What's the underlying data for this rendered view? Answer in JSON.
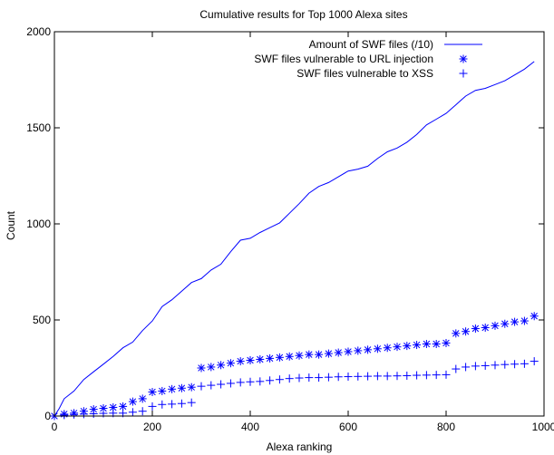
{
  "chart_data": {
    "type": "line",
    "title": "Cumulative results for Top 1000 Alexa sites",
    "xlabel": "Alexa ranking",
    "ylabel": "Count",
    "xlim": [
      0,
      1000
    ],
    "ylim": [
      0,
      2000
    ],
    "xticks": [
      "0",
      "200",
      "400",
      "600",
      "800",
      "1000"
    ],
    "yticks": [
      "0",
      "500",
      "1000",
      "1500",
      "2000"
    ],
    "grid": false,
    "legend_position": "top-right",
    "color": "#0000ff",
    "series": [
      {
        "name": "Amount of SWF files (/10)",
        "style": "line",
        "x": [
          0,
          10,
          20,
          40,
          60,
          80,
          100,
          120,
          140,
          160,
          180,
          200,
          220,
          240,
          260,
          280,
          300,
          320,
          340,
          360,
          380,
          400,
          420,
          440,
          460,
          480,
          500,
          520,
          540,
          560,
          580,
          600,
          620,
          640,
          660,
          680,
          700,
          720,
          740,
          760,
          780,
          800,
          820,
          840,
          860,
          880,
          900,
          920,
          940,
          960,
          980
        ],
        "y": [
          0,
          40,
          90,
          130,
          190,
          230,
          270,
          310,
          355,
          385,
          445,
          495,
          570,
          605,
          650,
          695,
          715,
          760,
          790,
          855,
          915,
          925,
          955,
          980,
          1005,
          1055,
          1105,
          1160,
          1195,
          1215,
          1245,
          1275,
          1285,
          1300,
          1340,
          1375,
          1395,
          1425,
          1465,
          1515,
          1545,
          1575,
          1620,
          1665,
          1695,
          1705,
          1725,
          1745,
          1775,
          1805,
          1845
        ]
      },
      {
        "name": "SWF files vulnerable to URL injection",
        "style": "star",
        "x": [
          0,
          20,
          40,
          60,
          80,
          100,
          120,
          140,
          160,
          180,
          200,
          220,
          240,
          260,
          280,
          300,
          320,
          340,
          360,
          380,
          400,
          420,
          440,
          460,
          480,
          500,
          520,
          540,
          560,
          580,
          600,
          620,
          640,
          660,
          680,
          700,
          720,
          740,
          760,
          780,
          800,
          820,
          840,
          860,
          880,
          900,
          920,
          940,
          960,
          980
        ],
        "y": [
          0,
          10,
          15,
          25,
          35,
          40,
          45,
          50,
          75,
          90,
          125,
          130,
          140,
          145,
          150,
          250,
          255,
          265,
          275,
          285,
          290,
          295,
          300,
          305,
          310,
          315,
          320,
          320,
          325,
          330,
          335,
          340,
          345,
          350,
          355,
          360,
          365,
          370,
          375,
          375,
          380,
          430,
          440,
          455,
          460,
          470,
          480,
          490,
          495,
          520
        ]
      },
      {
        "name": "SWF files vulnerable to XSS",
        "style": "plus",
        "x": [
          0,
          20,
          40,
          60,
          80,
          100,
          120,
          140,
          160,
          180,
          200,
          220,
          240,
          260,
          280,
          300,
          320,
          340,
          360,
          380,
          400,
          420,
          440,
          460,
          480,
          500,
          520,
          540,
          560,
          580,
          600,
          620,
          640,
          660,
          680,
          700,
          720,
          740,
          760,
          780,
          800,
          820,
          840,
          860,
          880,
          900,
          920,
          940,
          960,
          980
        ],
        "y": [
          0,
          5,
          8,
          10,
          12,
          14,
          15,
          15,
          20,
          25,
          50,
          60,
          62,
          65,
          70,
          155,
          160,
          165,
          170,
          175,
          178,
          180,
          185,
          190,
          195,
          198,
          200,
          200,
          202,
          204,
          205,
          206,
          207,
          208,
          208,
          209,
          210,
          212,
          213,
          214,
          215,
          245,
          255,
          260,
          262,
          265,
          268,
          270,
          272,
          285
        ]
      }
    ]
  }
}
